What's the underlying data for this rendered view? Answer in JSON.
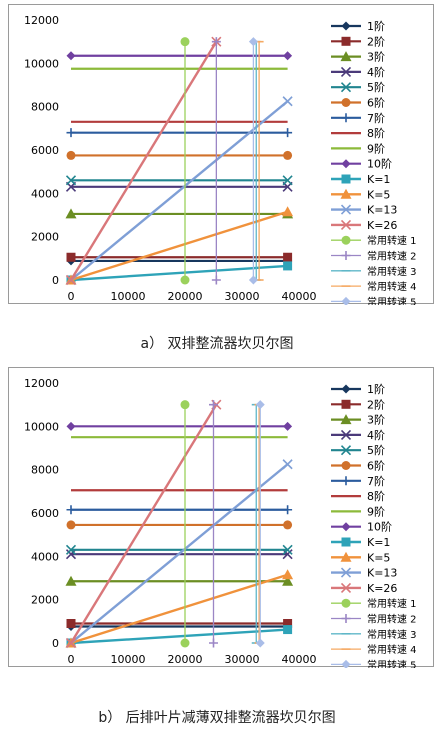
{
  "captions": {
    "a": "a） 双排整流器坎贝尔图",
    "b": "b） 后排叶片减薄双排整流器坎贝尔图"
  },
  "legend_labels": [
    "1阶",
    "2阶",
    "3阶",
    "4阶",
    "5阶",
    "6阶",
    "7阶",
    "8阶",
    "9阶",
    "10阶",
    "K=1",
    "K=5",
    "K=13",
    "K=26",
    "常用转速 1",
    "常用转速 2",
    "常用转速 3",
    "常用转速 4",
    "常用转速 5"
  ],
  "chart_data": [
    {
      "type": "line",
      "title": "",
      "xlim": [
        0,
        40000
      ],
      "ylim": [
        0,
        12000
      ],
      "xticks": [
        0,
        10000,
        20000,
        30000,
        40000
      ],
      "yticks": [
        0,
        2000,
        4000,
        6000,
        8000,
        10000,
        12000
      ],
      "x_range_modes": [
        0,
        38000
      ],
      "modes": [
        {
          "name": "1阶",
          "value": 880,
          "color": "#17375e",
          "marker": "diamond"
        },
        {
          "name": "2阶",
          "value": 1050,
          "color": "#8b2b2b",
          "marker": "square"
        },
        {
          "name": "3阶",
          "value": 3050,
          "color": "#6b8e23",
          "marker": "triangle"
        },
        {
          "name": "4阶",
          "value": 4300,
          "color": "#4b3a7a",
          "marker": "x"
        },
        {
          "name": "5阶",
          "value": 4600,
          "color": "#21858f",
          "marker": "x"
        },
        {
          "name": "6阶",
          "value": 5750,
          "color": "#d0712b",
          "marker": "circle"
        },
        {
          "name": "7阶",
          "value": 6800,
          "color": "#2b5c9e",
          "marker": "plus"
        },
        {
          "name": "8阶",
          "value": 7300,
          "color": "#b23c3c",
          "marker": "none"
        },
        {
          "name": "9阶",
          "value": 9750,
          "color": "#8cba3a",
          "marker": "none"
        },
        {
          "name": "10阶",
          "value": 10350,
          "color": "#7040a0",
          "marker": "diamond"
        }
      ],
      "excitation_lines": [
        {
          "name": "K=1",
          "x": [
            0,
            38000
          ],
          "y": [
            0,
            650
          ],
          "color": "#2ea3b8",
          "marker": "square"
        },
        {
          "name": "K=5",
          "x": [
            0,
            38000
          ],
          "y": [
            0,
            3150
          ],
          "color": "#f0923c",
          "marker": "triangle"
        },
        {
          "name": "K=13",
          "x": [
            0,
            38000
          ],
          "y": [
            0,
            8250
          ],
          "color": "#7f9fd6",
          "marker": "x"
        },
        {
          "name": "K=26",
          "x": [
            0,
            25500
          ],
          "y": [
            0,
            11000
          ],
          "color": "#d9777a",
          "marker": "x"
        }
      ],
      "speed_lines": [
        {
          "name": "常用转速 1",
          "x": 20000,
          "y": [
            0,
            11000
          ],
          "color": "#9bd15c",
          "marker": "circle"
        },
        {
          "name": "常用转速 2",
          "x": 25500,
          "y": [
            0,
            11000
          ],
          "color": "#9b86c5",
          "marker": "plus"
        },
        {
          "name": "常用转速 3",
          "x": 32500,
          "y": [
            0,
            11000
          ],
          "color": "#5fb7c8",
          "marker": "dash"
        },
        {
          "name": "常用转速 4",
          "x": 33000,
          "y": [
            0,
            11000
          ],
          "color": "#f5a962",
          "marker": "dash"
        },
        {
          "name": "常用转速 5",
          "x": 32000,
          "y": [
            0,
            11000
          ],
          "color": "#a9bde8",
          "marker": "diamond"
        }
      ]
    },
    {
      "type": "line",
      "title": "",
      "xlim": [
        0,
        40000
      ],
      "ylim": [
        0,
        12000
      ],
      "xticks": [
        0,
        10000,
        20000,
        30000,
        40000
      ],
      "yticks": [
        0,
        2000,
        4000,
        6000,
        8000,
        10000,
        12000
      ],
      "x_range_modes": [
        0,
        38000
      ],
      "modes": [
        {
          "name": "1阶",
          "value": 760,
          "color": "#17375e",
          "marker": "diamond"
        },
        {
          "name": "2阶",
          "value": 900,
          "color": "#8b2b2b",
          "marker": "square"
        },
        {
          "name": "3阶",
          "value": 2850,
          "color": "#6b8e23",
          "marker": "triangle"
        },
        {
          "name": "4阶",
          "value": 4100,
          "color": "#4b3a7a",
          "marker": "x"
        },
        {
          "name": "5阶",
          "value": 4300,
          "color": "#21858f",
          "marker": "x"
        },
        {
          "name": "6阶",
          "value": 5450,
          "color": "#d0712b",
          "marker": "circle"
        },
        {
          "name": "7阶",
          "value": 6150,
          "color": "#2b5c9e",
          "marker": "plus"
        },
        {
          "name": "8阶",
          "value": 7050,
          "color": "#b23c3c",
          "marker": "none"
        },
        {
          "name": "9阶",
          "value": 9500,
          "color": "#8cba3a",
          "marker": "none"
        },
        {
          "name": "10阶",
          "value": 10000,
          "color": "#7040a0",
          "marker": "diamond"
        }
      ],
      "excitation_lines": [
        {
          "name": "K=1",
          "x": [
            0,
            38000
          ],
          "y": [
            0,
            620
          ],
          "color": "#2ea3b8",
          "marker": "square"
        },
        {
          "name": "K=5",
          "x": [
            0,
            38000
          ],
          "y": [
            0,
            3150
          ],
          "color": "#f0923c",
          "marker": "triangle"
        },
        {
          "name": "K=13",
          "x": [
            0,
            38000
          ],
          "y": [
            0,
            8250
          ],
          "color": "#7f9fd6",
          "marker": "x"
        },
        {
          "name": "K=26",
          "x": [
            0,
            25500
          ],
          "y": [
            0,
            11000
          ],
          "color": "#d9777a",
          "marker": "x"
        }
      ],
      "speed_lines": [
        {
          "name": "常用转速 1",
          "x": 20000,
          "y": [
            0,
            11000
          ],
          "color": "#9bd15c",
          "marker": "circle"
        },
        {
          "name": "常用转速 2",
          "x": 25000,
          "y": [
            0,
            11000
          ],
          "color": "#9b86c5",
          "marker": "plus"
        },
        {
          "name": "常用转速 3",
          "x": 32500,
          "y": [
            0,
            11000
          ],
          "color": "#5fb7c8",
          "marker": "dash"
        },
        {
          "name": "常用转速 4",
          "x": 33000,
          "y": [
            0,
            11000
          ],
          "color": "#f5a962",
          "marker": "dash"
        },
        {
          "name": "常用转速 5",
          "x": 33200,
          "y": [
            0,
            11000
          ],
          "color": "#a9bde8",
          "marker": "diamond"
        }
      ]
    }
  ]
}
